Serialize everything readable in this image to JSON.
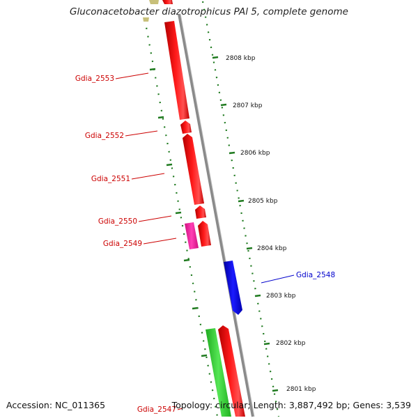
{
  "title": "Gluconacetobacter diazotrophicus PAl 5, complete genome",
  "footer": {
    "accession": "Accession: NC_011365",
    "topology": "Topology: circular; Length: 3,887,492 bp; Genes: 3,539"
  },
  "colors": {
    "forward_gene": "#ff0000",
    "reverse_gene": "#0000ee",
    "rna_feature": "#ff2aa8",
    "green_feature": "#2fd12f",
    "olive_feature": "#c8c07a",
    "backbone": "#888888",
    "ticks": "#1f7a1f",
    "forward_label": "#cc0000",
    "reverse_label": "#0000cc"
  },
  "scale_labels": [
    "2808 kbp",
    "2807 kbp",
    "2806 kbp",
    "2805 kbp",
    "2804 kbp",
    "2803 kbp",
    "2802 kbp",
    "2801 kbp"
  ],
  "genes": [
    {
      "name": "Gdia_2553",
      "strand": "forward",
      "color": "#ff0000"
    },
    {
      "name": "Gdia_2552",
      "strand": "forward",
      "color": "#ff0000"
    },
    {
      "name": "Gdia_2551",
      "strand": "forward",
      "color": "#ff0000"
    },
    {
      "name": "Gdia_2550",
      "strand": "forward",
      "color": "#ff0000"
    },
    {
      "name": "Gdia_2549",
      "strand": "forward",
      "color": "#ff2aa8"
    },
    {
      "name": "Gdia_2548",
      "strand": "reverse",
      "color": "#0000ee"
    },
    {
      "name": "Gdia_2547",
      "strand": "forward",
      "color": "#ff0000"
    }
  ]
}
